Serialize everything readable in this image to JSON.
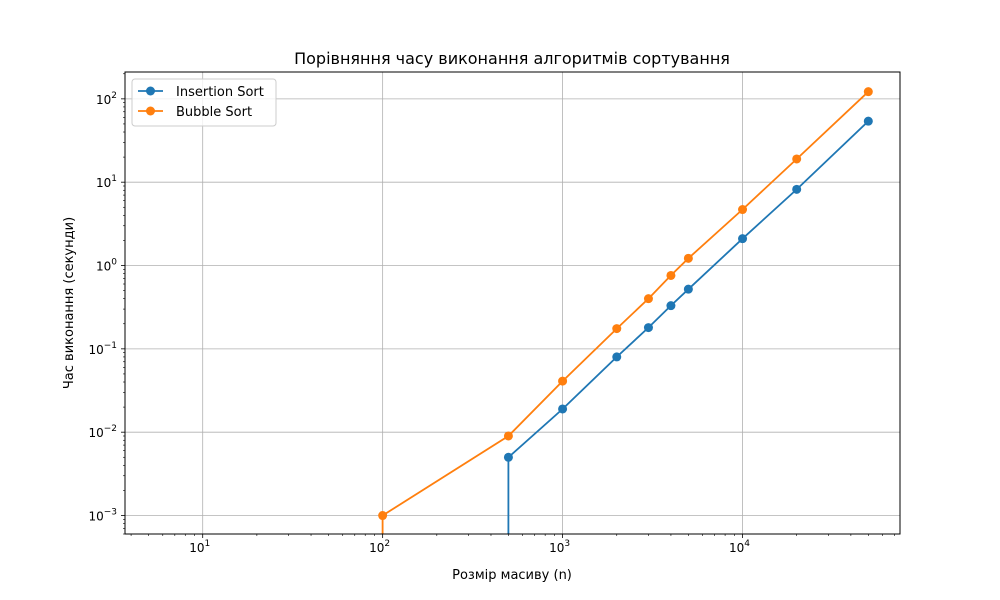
{
  "chart_data": {
    "type": "line",
    "title": "Порівняння часу виконання алгоритмів сортування",
    "xlabel": "Розмір масиву (n)",
    "ylabel": "Час виконання (секунди)",
    "xscale": "log",
    "yscale": "log",
    "xlim": [
      3.7,
      75000
    ],
    "ylim": [
      0.0006,
      210
    ],
    "grid": true,
    "legend_position": "top-left",
    "x_ticks": [
      {
        "value": 10,
        "base": "10",
        "exp": "1"
      },
      {
        "value": 100,
        "base": "10",
        "exp": "2"
      },
      {
        "value": 1000,
        "base": "10",
        "exp": "3"
      },
      {
        "value": 10000,
        "base": "10",
        "exp": "4"
      }
    ],
    "y_ticks": [
      {
        "value": 0.001,
        "base": "10",
        "exp": "−3"
      },
      {
        "value": 0.01,
        "base": "10",
        "exp": "−2"
      },
      {
        "value": 0.1,
        "base": "10",
        "exp": "−1"
      },
      {
        "value": 1,
        "base": "10",
        "exp": "0"
      },
      {
        "value": 10,
        "base": "10",
        "exp": "1"
      },
      {
        "value": 100,
        "base": "10",
        "exp": "2"
      }
    ],
    "x": [
      10,
      100,
      500,
      1000,
      2000,
      3000,
      4000,
      5000,
      10000,
      20000,
      50000
    ],
    "series": [
      {
        "name": "Insertion Sort",
        "color": "#1f77b4",
        "values": [
          0,
          0,
          0.005,
          0.019,
          0.08,
          0.18,
          0.33,
          0.52,
          2.1,
          8.2,
          54
        ]
      },
      {
        "name": "Bubble Sort",
        "color": "#ff7f0e",
        "values": [
          0,
          0.001,
          0.009,
          0.041,
          0.175,
          0.4,
          0.76,
          1.22,
          4.7,
          19,
          122
        ]
      }
    ]
  }
}
